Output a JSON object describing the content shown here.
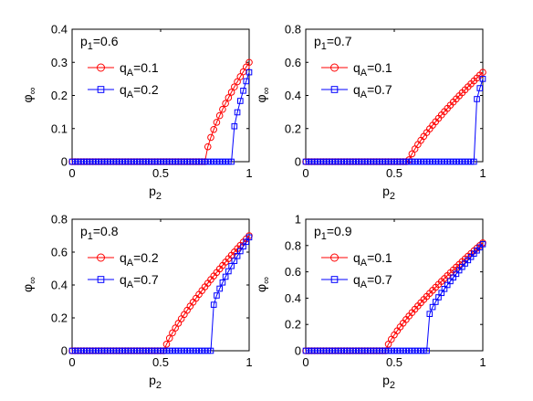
{
  "chart_data": [
    {
      "type": "line",
      "title": "",
      "xlabel": "p",
      "xlabel_sub": "2",
      "ylabel": "φ",
      "ylabel_sub": "∞",
      "xlim": [
        0,
        1
      ],
      "ylim": [
        0,
        0.4
      ],
      "xticks": [
        0,
        0.5,
        1
      ],
      "xtick_labels": [
        "0",
        "0.5",
        "1"
      ],
      "yticks": [
        0,
        0.1,
        0.2,
        0.3,
        0.4
      ],
      "ytick_labels": [
        "0",
        "0.1",
        "0.2",
        "0.3",
        "0.4"
      ],
      "annotation": "p",
      "annotation_sub": "1",
      "annotation_value": "=0.6",
      "legend_position": "top-left",
      "series": [
        {
          "name": "q",
          "name_sub": "A",
          "name_value": "=0.1",
          "marker": "circle",
          "color": "#ff0000",
          "threshold": 0.75,
          "peak": 0.3,
          "exponent": 0.7
        },
        {
          "name": "q",
          "name_sub": "A",
          "name_value": "=0.2",
          "marker": "square",
          "color": "#0000ff",
          "threshold": 0.91,
          "jump": 0.08,
          "peak": 0.27,
          "exponent": 0.75
        }
      ]
    },
    {
      "type": "line",
      "title": "",
      "xlabel": "p",
      "xlabel_sub": "2",
      "ylabel": "φ",
      "ylabel_sub": "∞",
      "xlim": [
        0,
        1
      ],
      "ylim": [
        0,
        0.8
      ],
      "xticks": [
        0,
        0.5,
        1
      ],
      "xtick_labels": [
        "0",
        "0.5",
        "1"
      ],
      "yticks": [
        0,
        0.2,
        0.4,
        0.6,
        0.8
      ],
      "ytick_labels": [
        "0",
        "0.2",
        "0.4",
        "0.6",
        "0.8"
      ],
      "annotation": "p",
      "annotation_sub": "1",
      "annotation_value": "=0.7",
      "legend_position": "top-left",
      "series": [
        {
          "name": "q",
          "name_sub": "A",
          "name_value": "=0.1",
          "marker": "circle",
          "color": "#ff0000",
          "threshold": 0.58,
          "peak": 0.54,
          "exponent": 0.8
        },
        {
          "name": "q",
          "name_sub": "A",
          "name_value": "=0.7",
          "marker": "square",
          "color": "#0000ff",
          "threshold": 0.96,
          "jump": 0.34,
          "peak": 0.5,
          "exponent": 0.8
        }
      ]
    },
    {
      "type": "line",
      "title": "",
      "xlabel": "p",
      "xlabel_sub": "2",
      "ylabel": "φ",
      "ylabel_sub": "∞",
      "xlim": [
        0,
        1
      ],
      "ylim": [
        0,
        0.8
      ],
      "xticks": [
        0,
        0.5,
        1
      ],
      "xtick_labels": [
        "0",
        "0.5",
        "1"
      ],
      "yticks": [
        0,
        0.2,
        0.4,
        0.6,
        0.8
      ],
      "ytick_labels": [
        "0",
        "0.2",
        "0.4",
        "0.6",
        "0.8"
      ],
      "annotation": "p",
      "annotation_sub": "1",
      "annotation_value": "=0.8",
      "legend_position": "top-left",
      "series": [
        {
          "name": "q",
          "name_sub": "A",
          "name_value": "=0.2",
          "marker": "circle",
          "color": "#ff0000",
          "threshold": 0.52,
          "peak": 0.7,
          "exponent": 0.8
        },
        {
          "name": "q",
          "name_sub": "A",
          "name_value": "=0.7",
          "marker": "square",
          "color": "#0000ff",
          "threshold": 0.8,
          "jump": 0.28,
          "peak": 0.69,
          "exponent": 0.8
        }
      ]
    },
    {
      "type": "line",
      "title": "",
      "xlabel": "p",
      "xlabel_sub": "2",
      "ylabel": "φ",
      "ylabel_sub": "∞",
      "xlim": [
        0,
        1
      ],
      "ylim": [
        0,
        1
      ],
      "xticks": [
        0,
        0.5,
        1
      ],
      "xtick_labels": [
        "0",
        "0.5",
        "1"
      ],
      "yticks": [
        0,
        0.2,
        0.4,
        0.6,
        0.8,
        1
      ],
      "ytick_labels": [
        "0",
        "0.2",
        "0.4",
        "0.6",
        "0.8",
        "1"
      ],
      "annotation": "p",
      "annotation_sub": "1",
      "annotation_value": "=0.9",
      "legend_position": "top-left",
      "series": [
        {
          "name": "q",
          "name_sub": "A",
          "name_value": "=0.1",
          "marker": "circle",
          "color": "#ff0000",
          "threshold": 0.45,
          "peak": 0.82,
          "exponent": 0.8
        },
        {
          "name": "q",
          "name_sub": "A",
          "name_value": "=0.7",
          "marker": "square",
          "color": "#0000ff",
          "threshold": 0.7,
          "jump": 0.28,
          "peak": 0.81,
          "exponent": 0.8
        }
      ]
    }
  ]
}
